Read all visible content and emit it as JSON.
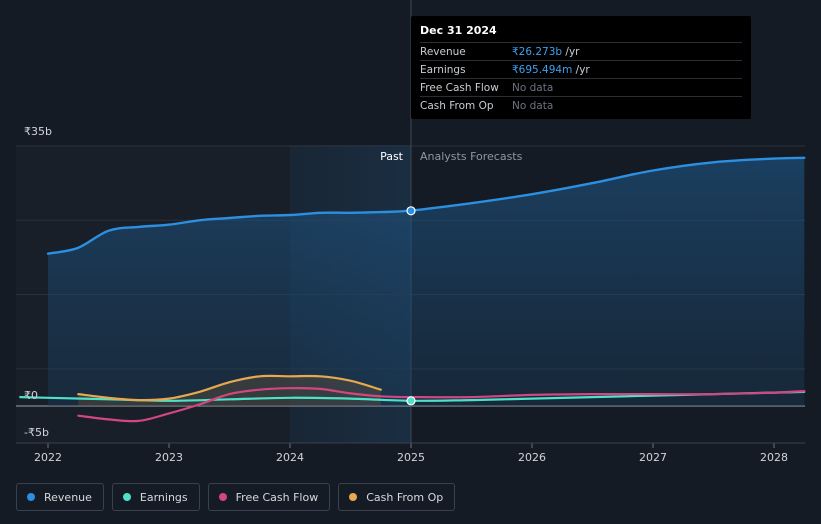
{
  "tooltip": {
    "date": "Dec 31 2024",
    "rows": [
      {
        "label": "Revenue",
        "value": "₹26.273b",
        "unit": " /yr"
      },
      {
        "label": "Earnings",
        "value": "₹695.494m",
        "unit": " /yr"
      },
      {
        "label": "Free Cash Flow",
        "value": "No data",
        "unit": ""
      },
      {
        "label": "Cash From Op",
        "value": "No data",
        "unit": ""
      }
    ]
  },
  "section_labels": {
    "past": "Past",
    "forecast": "Analysts Forecasts"
  },
  "colors": {
    "revenue": "#2d8fe0",
    "earnings": "#4fe0c8",
    "free_cash_flow": "#d2477f",
    "cash_from_op": "#e7a84f",
    "background": "#151b24"
  },
  "legend": [
    {
      "label": "Revenue",
      "color": "#2d8fe0"
    },
    {
      "label": "Earnings",
      "color": "#4fe0c8"
    },
    {
      "label": "Free Cash Flow",
      "color": "#d2477f"
    },
    {
      "label": "Cash From Op",
      "color": "#e7a84f"
    }
  ],
  "chart_data": {
    "type": "line",
    "title": "",
    "xlabel": "",
    "ylabel": "",
    "y_tick_labels": [
      "₹35b",
      "₹0",
      "-₹5b"
    ],
    "y_ticks": [
      35,
      0,
      -5
    ],
    "x_tick_labels": [
      "2022",
      "2023",
      "2024",
      "2025",
      "2026",
      "2027",
      "2028"
    ],
    "x_ticks": [
      2022,
      2023,
      2024,
      2025,
      2026,
      2027,
      2028
    ],
    "xlim": [
      2021.77,
      2028.25
    ],
    "ylim": [
      -5,
      35
    ],
    "divider_x": 2025.0,
    "highlight_range": [
      2024.0,
      2025.0
    ],
    "grid": true,
    "legend_position": "bottom-left",
    "series": [
      {
        "key": "revenue",
        "name": "Revenue",
        "x": [
          2022.0,
          2022.25,
          2022.5,
          2022.75,
          2023.0,
          2023.25,
          2023.5,
          2023.75,
          2024.0,
          2024.25,
          2024.5,
          2024.75,
          2025.0,
          2025.5,
          2026.0,
          2026.5,
          2027.0,
          2027.5,
          2028.0,
          2028.25
        ],
        "y": [
          20.5,
          21.3,
          23.6,
          24.1,
          24.4,
          25.0,
          25.3,
          25.6,
          25.7,
          26.0,
          26.0,
          26.1,
          26.3,
          27.3,
          28.5,
          30.0,
          31.7,
          32.8,
          33.3,
          33.4
        ]
      },
      {
        "key": "earnings",
        "name": "Earnings",
        "x": [
          2021.77,
          2022.0,
          2022.5,
          2023.0,
          2023.5,
          2024.0,
          2024.5,
          2025.0,
          2025.5,
          2026.0,
          2026.5,
          2027.0,
          2027.5,
          2028.0,
          2028.25
        ],
        "y": [
          1.2,
          1.1,
          0.9,
          0.7,
          0.9,
          1.1,
          1.0,
          0.7,
          0.8,
          1.0,
          1.2,
          1.4,
          1.6,
          1.8,
          1.9
        ]
      },
      {
        "key": "free_cash_flow",
        "name": "Free Cash Flow",
        "x": [
          2022.25,
          2022.5,
          2022.75,
          2023.0,
          2023.25,
          2023.5,
          2023.75,
          2024.0,
          2024.25,
          2024.5,
          2024.75,
          2025.0,
          2025.5,
          2026.0,
          2026.5,
          2027.0,
          2027.5,
          2028.0,
          2028.25
        ],
        "y": [
          -1.3,
          -1.8,
          -2.0,
          -1.0,
          0.2,
          1.6,
          2.2,
          2.4,
          2.3,
          1.7,
          1.3,
          1.2,
          1.2,
          1.5,
          1.6,
          1.6,
          1.6,
          1.8,
          2.0
        ]
      },
      {
        "key": "cash_from_op",
        "name": "Cash From Op",
        "x": [
          2022.25,
          2022.5,
          2022.75,
          2023.0,
          2023.25,
          2023.5,
          2023.75,
          2024.0,
          2024.25,
          2024.5,
          2024.75
        ],
        "y": [
          1.6,
          1.1,
          0.8,
          1.0,
          1.9,
          3.2,
          4.0,
          4.0,
          4.0,
          3.4,
          2.2
        ]
      }
    ],
    "markers": [
      {
        "series": "revenue",
        "x": 2025.0,
        "y": 26.273
      },
      {
        "series": "earnings",
        "x": 2025.0,
        "y": 0.695
      }
    ]
  }
}
